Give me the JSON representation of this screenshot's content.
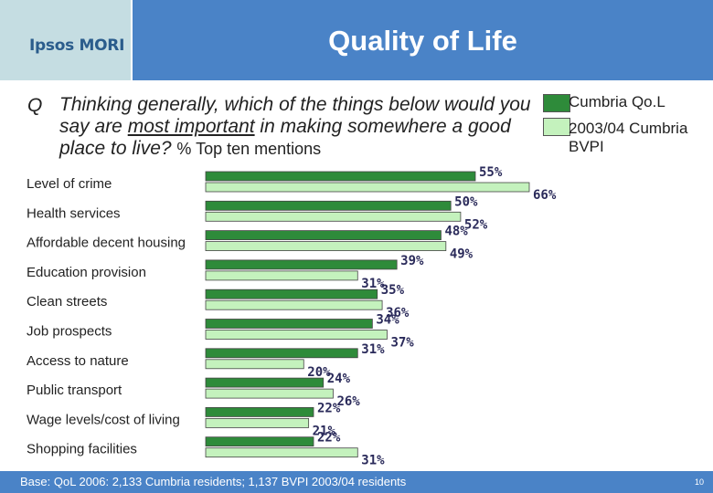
{
  "header": {
    "logo": "Ipsos MORI",
    "title": "Quality of Life"
  },
  "question": {
    "label": "Q",
    "text_before": "Thinking generally, which of the things below would you say are ",
    "text_underlined": "most important",
    "text_after": " in making somewhere a good place to live?",
    "suffix": "% Top ten mentions"
  },
  "legend": [
    {
      "label": "Cumbria Qo.L",
      "color": "#2e8b3a"
    },
    {
      "label": "2003/04 Cumbria BVPI",
      "color": "#c4f2bd"
    }
  ],
  "chart_data": {
    "type": "bar",
    "orientation": "horizontal",
    "categories": [
      "Level of crime",
      "Health services",
      "Affordable decent housing",
      "Education provision",
      "Clean streets",
      "Job prospects",
      "Access to nature",
      "Public transport",
      "Wage levels/cost of living",
      "Shopping facilities"
    ],
    "series": [
      {
        "name": "Cumbria Qo.L",
        "color": "#2e8b3a",
        "values": [
          55,
          50,
          48,
          39,
          35,
          34,
          31,
          24,
          22,
          22
        ]
      },
      {
        "name": "2003/04 Cumbria BVPI",
        "color": "#c4f2bd",
        "values": [
          66,
          52,
          49,
          31,
          36,
          37,
          20,
          26,
          21,
          31
        ]
      }
    ],
    "value_suffix": "%",
    "xlim": [
      0,
      100
    ],
    "grid": false,
    "legend_position": "top-right"
  },
  "footer": {
    "note": "Base: QoL 2006:  2,133 Cumbria residents; 1,137 BVPI 2003/04 residents",
    "page": "10"
  }
}
